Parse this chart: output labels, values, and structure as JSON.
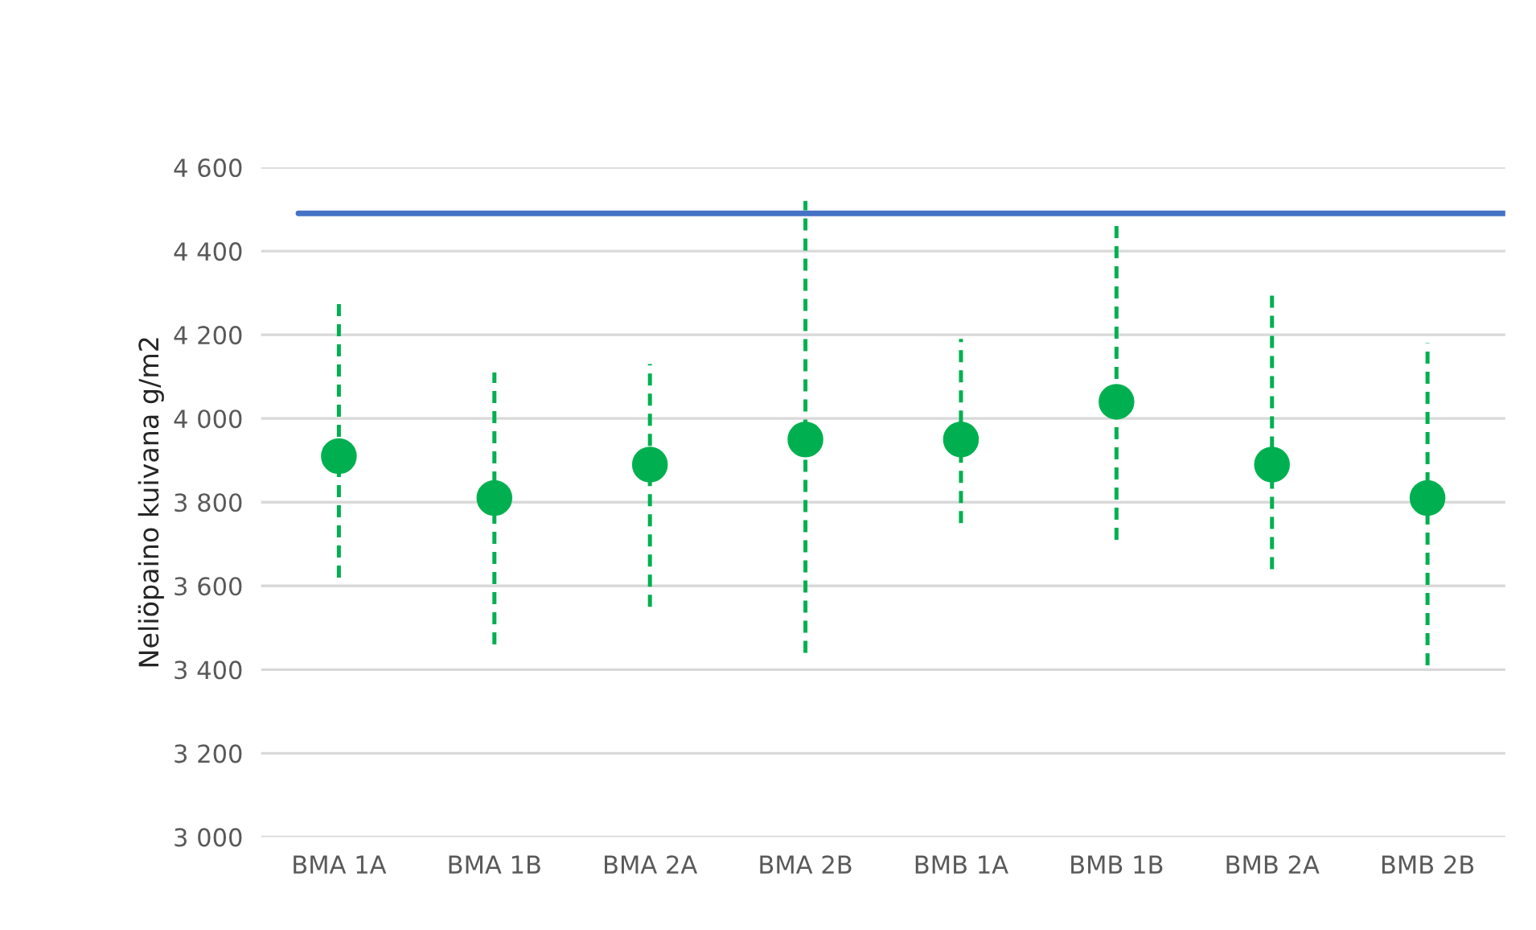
{
  "chart_data": {
    "type": "scatter",
    "ylabel": "Neliöpaino kuivana g/m2",
    "categories": [
      "BMA 1A",
      "BMA 1B",
      "BMA 2A",
      "BMA 2B",
      "BMB 1A",
      "BMB 1B",
      "BMB 2A",
      "BMB 2B"
    ],
    "series": [
      {
        "color": "#00b050",
        "values": [
          3910,
          3810,
          3890,
          3950,
          3950,
          4040,
          3890,
          3810
        ],
        "errors": [
          [
            3620,
            4280
          ],
          [
            3460,
            4110
          ],
          [
            3550,
            4130
          ],
          [
            3440,
            4520
          ],
          [
            3750,
            4190
          ],
          [
            3710,
            4470
          ],
          [
            3640,
            4300
          ],
          [
            3410,
            4180
          ]
        ]
      }
    ],
    "ref_lines": [
      {
        "axis": "y",
        "value": 4490,
        "color": "#4472c4",
        "line_style": "solid"
      }
    ],
    "ylim": [
      3000,
      4600
    ],
    "yticks": [
      {
        "value": 3000,
        "label": "3 000"
      },
      {
        "value": 3200,
        "label": "3 200"
      },
      {
        "value": 3400,
        "label": "3 400"
      },
      {
        "value": 3600,
        "label": "3 600"
      },
      {
        "value": 3800,
        "label": "3 800"
      },
      {
        "value": 4000,
        "label": "4 000"
      },
      {
        "value": 4200,
        "label": "4 200"
      },
      {
        "value": 4400,
        "label": "4 400"
      },
      {
        "value": 4600,
        "label": "4 600"
      }
    ],
    "grid": "y",
    "marker": "circle",
    "legend": false
  }
}
